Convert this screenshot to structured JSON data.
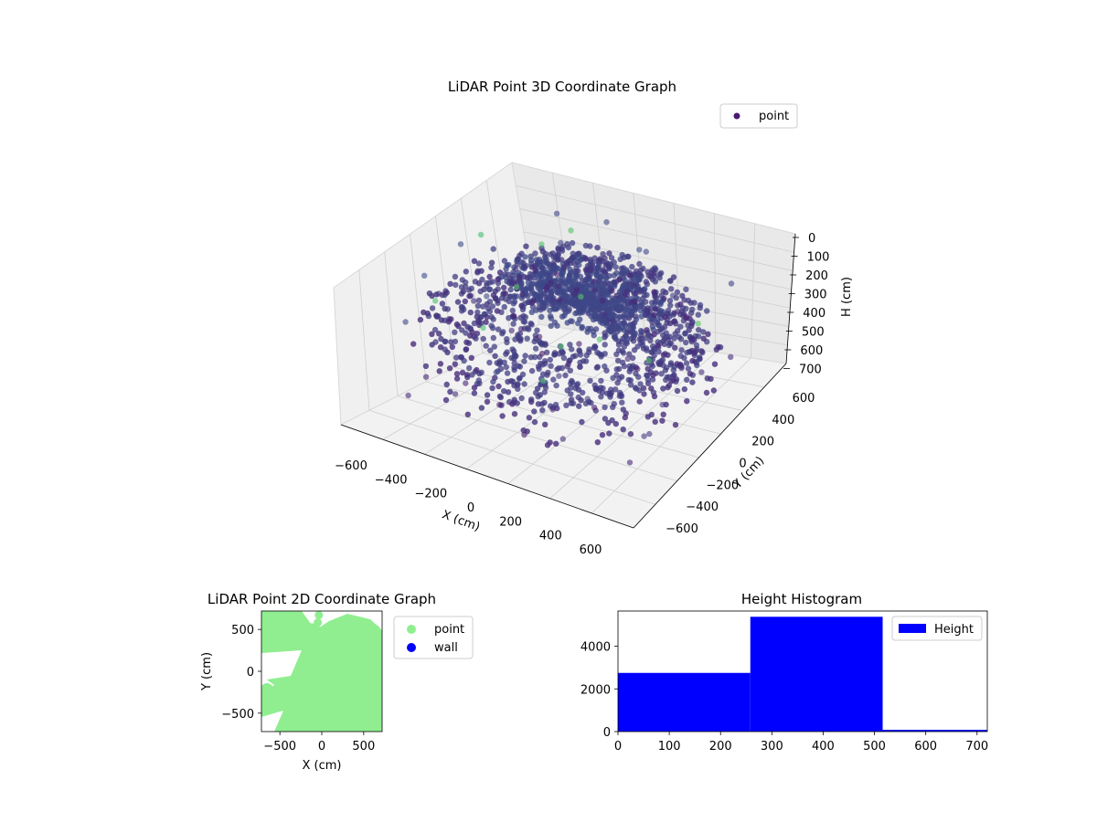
{
  "chart_data": [
    {
      "type": "scatter3d",
      "title": "LiDAR Point 3D Coordinate Graph",
      "xlabel": "X (cm)",
      "ylabel": "Y (cm)",
      "zlabel": "H (cm)",
      "xticks": [
        "−600",
        "−400",
        "−200",
        "0",
        "200",
        "400",
        "600"
      ],
      "yticks": [
        "−600",
        "−400",
        "−200",
        "0",
        "200",
        "400",
        "600"
      ],
      "zticks": [
        "0",
        "100",
        "200",
        "300",
        "400",
        "500",
        "600",
        "700"
      ],
      "xlim": [
        -700,
        700
      ],
      "ylim": [
        -700,
        700
      ],
      "zlim": [
        0,
        720
      ],
      "z_axis_inverted": true,
      "colormap": "viridis",
      "legend": {
        "entries": [
          {
            "label": "point",
            "color": "#4a1a72"
          }
        ],
        "placement": "top-right"
      },
      "grid": true,
      "series": [
        {
          "name": "point",
          "description_points": [
            {
              "x": -300,
              "y": 500,
              "z": 300
            },
            {
              "x": -100,
              "y": 450,
              "z": 300
            },
            {
              "x": 100,
              "y": 500,
              "z": 310
            },
            {
              "x": 300,
              "y": 400,
              "z": 320
            },
            {
              "x": 450,
              "y": 200,
              "z": 330
            },
            {
              "x": 500,
              "y": 0,
              "z": 340
            },
            {
              "x": -500,
              "y": 100,
              "z": 300
            },
            {
              "x": -550,
              "y": -200,
              "z": 310
            },
            {
              "x": -300,
              "y": -500,
              "z": 320
            },
            {
              "x": 0,
              "y": -550,
              "z": 330
            },
            {
              "x": 300,
              "y": -450,
              "z": 340
            },
            {
              "x": 500,
              "y": -250,
              "z": 350
            },
            {
              "x": -200,
              "y": 200,
              "z": 300
            },
            {
              "x": 0,
              "y": 150,
              "z": 300
            },
            {
              "x": 200,
              "y": 0,
              "z": 310
            },
            {
              "x": 600,
              "y": 600,
              "z": 100
            },
            {
              "x": -600,
              "y": 600,
              "z": 150
            },
            {
              "x": 600,
              "y": -600,
              "z": 700
            },
            {
              "x": -600,
              "y": -600,
              "z": 650
            }
          ]
        }
      ]
    },
    {
      "type": "scatter",
      "title": "LiDAR Point 2D Coordinate Graph",
      "xlabel": "X (cm)",
      "ylabel": "Y (cm)",
      "xticks": [
        "−500",
        "0",
        "500"
      ],
      "yticks": [
        "−500",
        "0",
        "500"
      ],
      "xlim": [
        -720,
        720
      ],
      "ylim": [
        -720,
        720
      ],
      "legend": {
        "entries": [
          {
            "label": "point",
            "color": "#90ee90"
          },
          {
            "label": "wall",
            "color": "#0000ff"
          }
        ],
        "placement": "outside-right"
      },
      "series": [
        {
          "name": "point",
          "color": "#90ee90",
          "description": "dense cloud covering most of the axes"
        },
        {
          "name": "wall",
          "color": "#0000ff",
          "values": []
        }
      ]
    },
    {
      "type": "bar",
      "title": "Height Histogram",
      "xticks": [
        "0",
        "100",
        "200",
        "300",
        "400",
        "500",
        "600",
        "700"
      ],
      "yticks": [
        "0",
        "2000",
        "4000"
      ],
      "xlim": [
        0,
        720
      ],
      "ylim": [
        0,
        5650
      ],
      "legend": {
        "entries": [
          {
            "label": "Height",
            "color": "#0000ff"
          }
        ],
        "placement": "top-right"
      },
      "bins": [
        {
          "from": 0,
          "to": 258,
          "count": 2750
        },
        {
          "from": 258,
          "to": 516,
          "count": 5380
        },
        {
          "from": 516,
          "to": 720,
          "count": 80
        }
      ]
    }
  ]
}
